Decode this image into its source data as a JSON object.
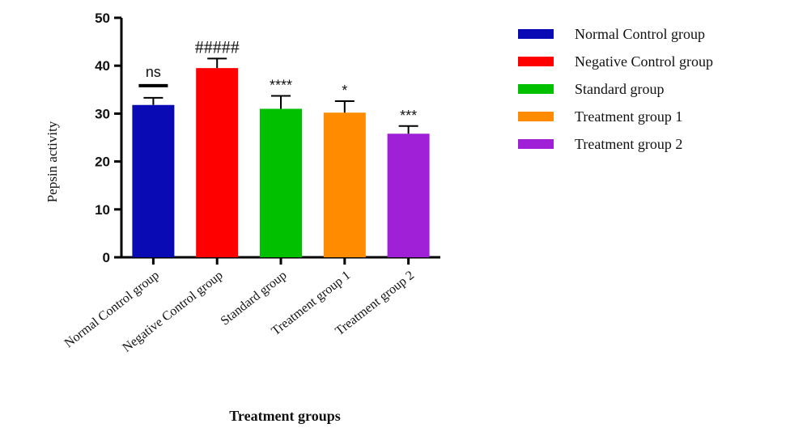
{
  "chart_data": {
    "type": "bar",
    "title": "",
    "xlabel": "Treatment groups",
    "ylabel": "Pepsin activity",
    "ylim": [
      0,
      50
    ],
    "yticks": [
      "0",
      "10",
      "20",
      "30",
      "40",
      "50"
    ],
    "categories": [
      "Normal Control group",
      "Negative Control group",
      "Standard group",
      "Treatment group 1",
      "Treatment group 2"
    ],
    "values": [
      31.8,
      39.5,
      31.0,
      30.2,
      25.8
    ],
    "errors": [
      1.5,
      2.0,
      2.7,
      2.4,
      1.6
    ],
    "colors": [
      "#0a0ab4",
      "#ff0000",
      "#00c000",
      "#ff8c00",
      "#a020d8"
    ],
    "annotations": [
      "ns",
      "#####",
      "****",
      "*",
      "***"
    ],
    "legend": {
      "position": "right",
      "entries": [
        "Normal Control group",
        "Negative Control group",
        "Standard group",
        "Treatment group 1",
        "Treatment group 2"
      ]
    },
    "grid": false
  }
}
